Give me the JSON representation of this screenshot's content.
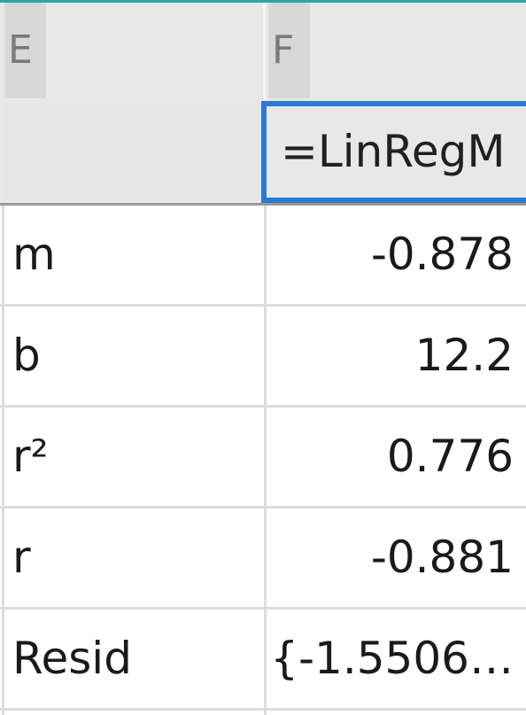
{
  "columns": {
    "e_header": "E",
    "f_header": "F"
  },
  "formula": {
    "f_cell": "=LinRegM"
  },
  "rows": [
    {
      "label": "m",
      "value": "-0.878"
    },
    {
      "label": "b",
      "value": "12.2"
    },
    {
      "label": "r²",
      "value": "0.776"
    },
    {
      "label": "r",
      "value": "-0.881"
    },
    {
      "label": "Resid",
      "value": "{-1.5506…"
    }
  ],
  "colors": {
    "selection_border": "#2b7bd4",
    "top_accent": "#2aa6a8",
    "header_bg": "#e8e8e8"
  }
}
